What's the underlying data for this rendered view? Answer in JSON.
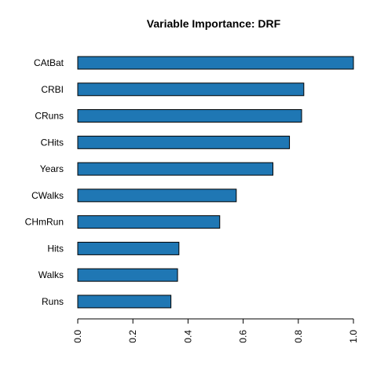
{
  "chart_data": {
    "type": "bar",
    "orientation": "horizontal",
    "title": "Variable Importance: DRF",
    "categories": [
      "CAtBat",
      "CRBI",
      "CRuns",
      "CHits",
      "Years",
      "CWalks",
      "CHmRun",
      "Hits",
      "Walks",
      "Runs"
    ],
    "values": [
      1.0,
      0.82,
      0.812,
      0.768,
      0.708,
      0.575,
      0.515,
      0.367,
      0.362,
      0.338
    ],
    "xlim": [
      0,
      1
    ],
    "xticks": [
      "0.0",
      "0.2",
      "0.4",
      "0.6",
      "0.8",
      "1.0"
    ],
    "xlabel": "",
    "ylabel": "",
    "grid": false,
    "bar_color": "#1F77B4"
  }
}
